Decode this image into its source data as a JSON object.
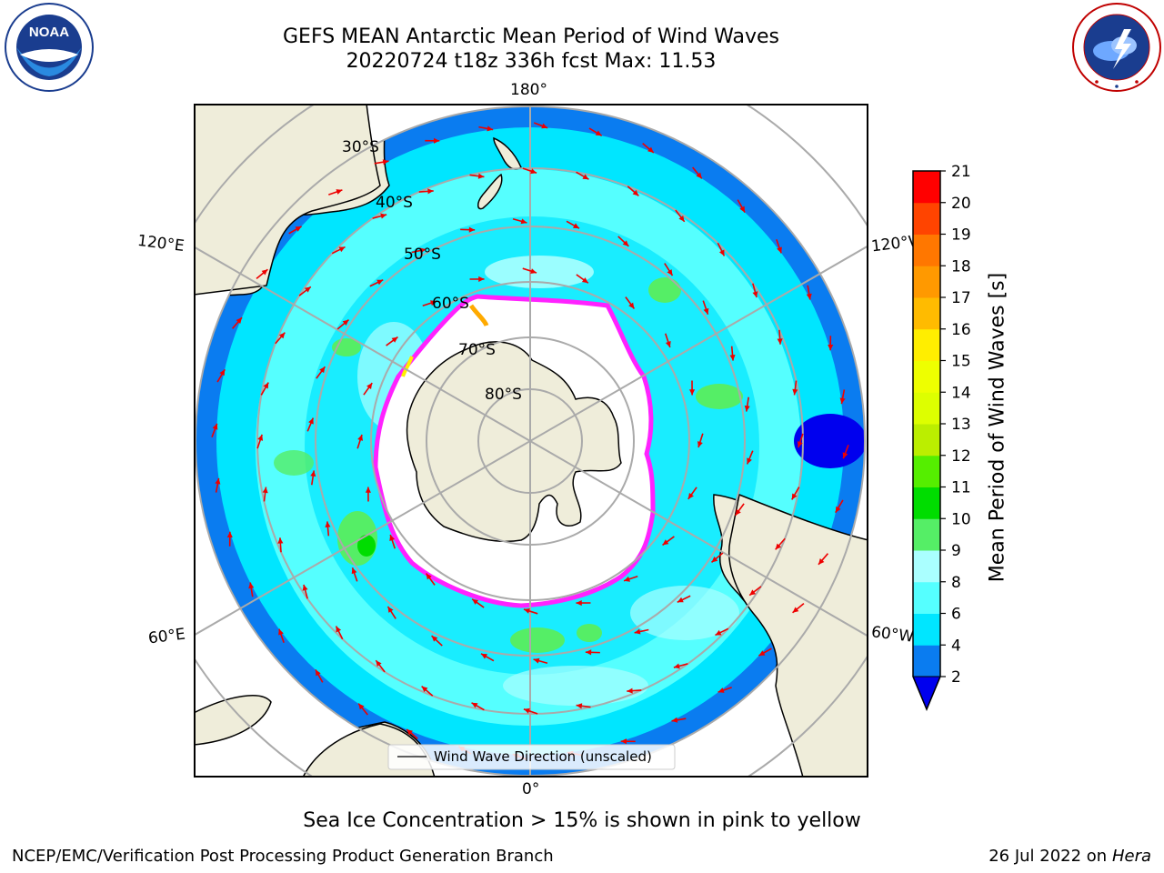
{
  "header": {
    "title_line1": "GEFS MEAN Antarctic Mean Period of Wind Waves",
    "title_line2": "20220724 t18z 336h fcst   Max: 11.53"
  },
  "logos": {
    "left_text": "NOAA",
    "left_ring_text": "NATIONAL OCEANIC AND ATMOSPHERIC ADMINISTRATION · U.S. DEPARTMENT OF COMMERCE",
    "right_ring_text": "NATIONAL WEATHER SERVICE",
    "left_icon": "noaa-logo-icon",
    "right_icon": "nws-logo-icon"
  },
  "map": {
    "longitude_labels": {
      "top": "180°",
      "bottom": "0°",
      "upper_left": "120°E",
      "upper_right": "120°W",
      "lower_left": "60°E",
      "lower_right": "60°W"
    },
    "latitude_labels": [
      "30°S",
      "40°S",
      "50°S",
      "60°S",
      "70°S",
      "80°S"
    ],
    "legend_label": "Wind Wave Direction (unscaled)",
    "colors": {
      "ocean_low": "#0a7cf0",
      "ocean_mid": "#00e6ff",
      "ocean_high": "#55ffff",
      "ocean_light": "#aaffff",
      "green_patch": "#55ee66",
      "land": "#efedda",
      "ice_edge": "#ff22ff",
      "arrow": "#ee0000"
    }
  },
  "colorbar": {
    "label": "Mean Period of Wind Waves [s]",
    "ticks": [
      "2",
      "4",
      "6",
      "8",
      "9",
      "10",
      "11",
      "12",
      "13",
      "14",
      "15",
      "16",
      "17",
      "18",
      "19",
      "20",
      "21"
    ],
    "colors": [
      "#0a7cf0",
      "#00e6ff",
      "#55ffff",
      "#aaffff",
      "#55ee66",
      "#00dd00",
      "#55ee00",
      "#bbee00",
      "#ddff00",
      "#eeff00",
      "#ffee00",
      "#ffbb00",
      "#ff9900",
      "#ff7700",
      "#ff4400",
      "#ff0000"
    ],
    "extend_low_color": "#0000ee"
  },
  "caption": "Sea Ice Concentration > 15% is shown in pink to yellow",
  "footer": {
    "left": "NCEP/EMC/Verification Post Processing Product Generation Branch",
    "right_date": "26 Jul 2022 on ",
    "right_host": "Hera"
  }
}
